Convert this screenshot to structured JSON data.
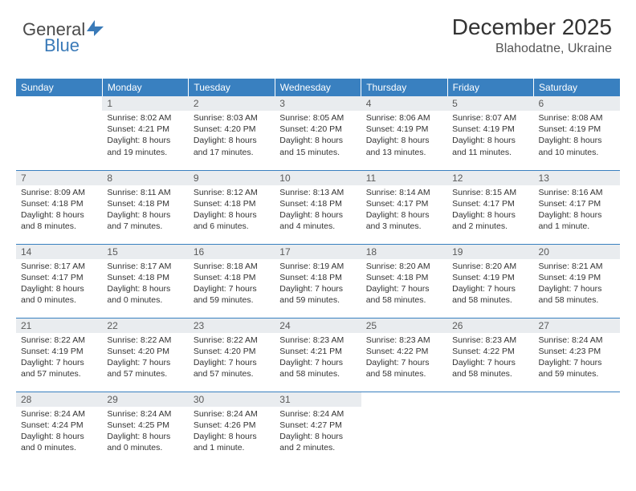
{
  "logo": {
    "part1": "General",
    "part2": "Blue"
  },
  "header": {
    "title": "December 2025",
    "location": "Blahodatne, Ukraine"
  },
  "weekdays": [
    "Sunday",
    "Monday",
    "Tuesday",
    "Wednesday",
    "Thursday",
    "Friday",
    "Saturday"
  ],
  "colors": {
    "header_bg": "#3980c0",
    "daynum_bg": "#e9ecef",
    "border": "#3980c0"
  },
  "days": [
    null,
    {
      "n": "1",
      "sr": "8:02 AM",
      "ss": "4:21 PM",
      "dl": "8 hours and 19 minutes."
    },
    {
      "n": "2",
      "sr": "8:03 AM",
      "ss": "4:20 PM",
      "dl": "8 hours and 17 minutes."
    },
    {
      "n": "3",
      "sr": "8:05 AM",
      "ss": "4:20 PM",
      "dl": "8 hours and 15 minutes."
    },
    {
      "n": "4",
      "sr": "8:06 AM",
      "ss": "4:19 PM",
      "dl": "8 hours and 13 minutes."
    },
    {
      "n": "5",
      "sr": "8:07 AM",
      "ss": "4:19 PM",
      "dl": "8 hours and 11 minutes."
    },
    {
      "n": "6",
      "sr": "8:08 AM",
      "ss": "4:19 PM",
      "dl": "8 hours and 10 minutes."
    },
    {
      "n": "7",
      "sr": "8:09 AM",
      "ss": "4:18 PM",
      "dl": "8 hours and 8 minutes."
    },
    {
      "n": "8",
      "sr": "8:11 AM",
      "ss": "4:18 PM",
      "dl": "8 hours and 7 minutes."
    },
    {
      "n": "9",
      "sr": "8:12 AM",
      "ss": "4:18 PM",
      "dl": "8 hours and 6 minutes."
    },
    {
      "n": "10",
      "sr": "8:13 AM",
      "ss": "4:18 PM",
      "dl": "8 hours and 4 minutes."
    },
    {
      "n": "11",
      "sr": "8:14 AM",
      "ss": "4:17 PM",
      "dl": "8 hours and 3 minutes."
    },
    {
      "n": "12",
      "sr": "8:15 AM",
      "ss": "4:17 PM",
      "dl": "8 hours and 2 minutes."
    },
    {
      "n": "13",
      "sr": "8:16 AM",
      "ss": "4:17 PM",
      "dl": "8 hours and 1 minute."
    },
    {
      "n": "14",
      "sr": "8:17 AM",
      "ss": "4:17 PM",
      "dl": "8 hours and 0 minutes."
    },
    {
      "n": "15",
      "sr": "8:17 AM",
      "ss": "4:18 PM",
      "dl": "8 hours and 0 minutes."
    },
    {
      "n": "16",
      "sr": "8:18 AM",
      "ss": "4:18 PM",
      "dl": "7 hours and 59 minutes."
    },
    {
      "n": "17",
      "sr": "8:19 AM",
      "ss": "4:18 PM",
      "dl": "7 hours and 59 minutes."
    },
    {
      "n": "18",
      "sr": "8:20 AM",
      "ss": "4:18 PM",
      "dl": "7 hours and 58 minutes."
    },
    {
      "n": "19",
      "sr": "8:20 AM",
      "ss": "4:19 PM",
      "dl": "7 hours and 58 minutes."
    },
    {
      "n": "20",
      "sr": "8:21 AM",
      "ss": "4:19 PM",
      "dl": "7 hours and 58 minutes."
    },
    {
      "n": "21",
      "sr": "8:22 AM",
      "ss": "4:19 PM",
      "dl": "7 hours and 57 minutes."
    },
    {
      "n": "22",
      "sr": "8:22 AM",
      "ss": "4:20 PM",
      "dl": "7 hours and 57 minutes."
    },
    {
      "n": "23",
      "sr": "8:22 AM",
      "ss": "4:20 PM",
      "dl": "7 hours and 57 minutes."
    },
    {
      "n": "24",
      "sr": "8:23 AM",
      "ss": "4:21 PM",
      "dl": "7 hours and 58 minutes."
    },
    {
      "n": "25",
      "sr": "8:23 AM",
      "ss": "4:22 PM",
      "dl": "7 hours and 58 minutes."
    },
    {
      "n": "26",
      "sr": "8:23 AM",
      "ss": "4:22 PM",
      "dl": "7 hours and 58 minutes."
    },
    {
      "n": "27",
      "sr": "8:24 AM",
      "ss": "4:23 PM",
      "dl": "7 hours and 59 minutes."
    },
    {
      "n": "28",
      "sr": "8:24 AM",
      "ss": "4:24 PM",
      "dl": "8 hours and 0 minutes."
    },
    {
      "n": "29",
      "sr": "8:24 AM",
      "ss": "4:25 PM",
      "dl": "8 hours and 0 minutes."
    },
    {
      "n": "30",
      "sr": "8:24 AM",
      "ss": "4:26 PM",
      "dl": "8 hours and 1 minute."
    },
    {
      "n": "31",
      "sr": "8:24 AM",
      "ss": "4:27 PM",
      "dl": "8 hours and 2 minutes."
    },
    null,
    null,
    null
  ],
  "labels": {
    "sunrise": "Sunrise:",
    "sunset": "Sunset:",
    "daylight": "Daylight:"
  }
}
